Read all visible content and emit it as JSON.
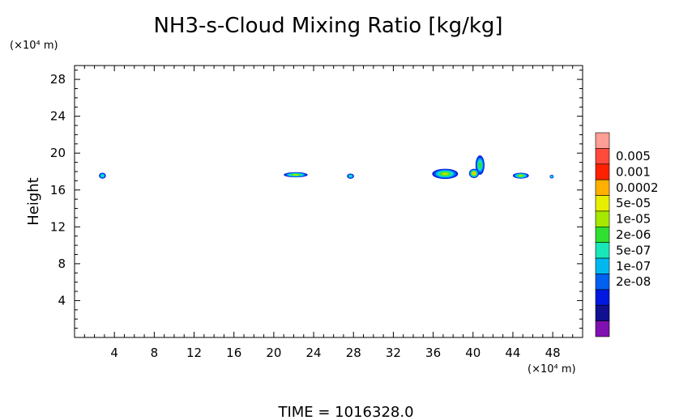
{
  "chart_data": {
    "type": "heatmap",
    "title": "NH3-s-Cloud Mixing Ratio [kg/kg]",
    "ylabel": "Height",
    "x_unit": "(×10⁴ m)",
    "y_unit": "(×10⁴ m)",
    "xlim": [
      0,
      51
    ],
    "ylim": [
      0,
      29.5
    ],
    "x_ticks": [
      4,
      8,
      12,
      16,
      20,
      24,
      28,
      32,
      36,
      40,
      44,
      48
    ],
    "y_ticks": [
      4,
      8,
      12,
      16,
      20,
      24,
      28
    ],
    "grid": false,
    "footer": "TIME  =  1016328.0",
    "colorbar": {
      "levels": [
        "0.005",
        "0.001",
        "0.0002",
        "5e-05",
        "1e-05",
        "2e-06",
        "5e-07",
        "1e-07",
        "2e-08"
      ],
      "colors": [
        "#ff9e94",
        "#ff4a3c",
        "#ff2000",
        "#ffb000",
        "#e8ee00",
        "#a6e800",
        "#30e030",
        "#18e8b8",
        "#00b8f0",
        "#0060f0",
        "#0018e0",
        "#101090",
        "#8010b0"
      ]
    },
    "features": [
      {
        "x": 2.8,
        "y": 17.55,
        "rx": 0.35,
        "ry": 0.32,
        "level": "5e-07"
      },
      {
        "x": 22.2,
        "y": 17.65,
        "rx": 1.2,
        "ry": 0.28,
        "level": "1e-05"
      },
      {
        "x": 27.7,
        "y": 17.5,
        "rx": 0.35,
        "ry": 0.28,
        "level": "5e-07"
      },
      {
        "x": 37.2,
        "y": 17.75,
        "rx": 1.3,
        "ry": 0.55,
        "level": "1e-05"
      },
      {
        "x": 40.7,
        "y": 18.7,
        "rx": 0.45,
        "ry": 1.05,
        "level": "2e-06"
      },
      {
        "x": 40.1,
        "y": 17.8,
        "rx": 0.5,
        "ry": 0.5,
        "level": "0.0002"
      },
      {
        "x": 44.8,
        "y": 17.55,
        "rx": 0.8,
        "ry": 0.32,
        "level": "1e-05"
      },
      {
        "x": 47.9,
        "y": 17.45,
        "rx": 0.2,
        "ry": 0.2,
        "level": "5e-07"
      }
    ]
  }
}
